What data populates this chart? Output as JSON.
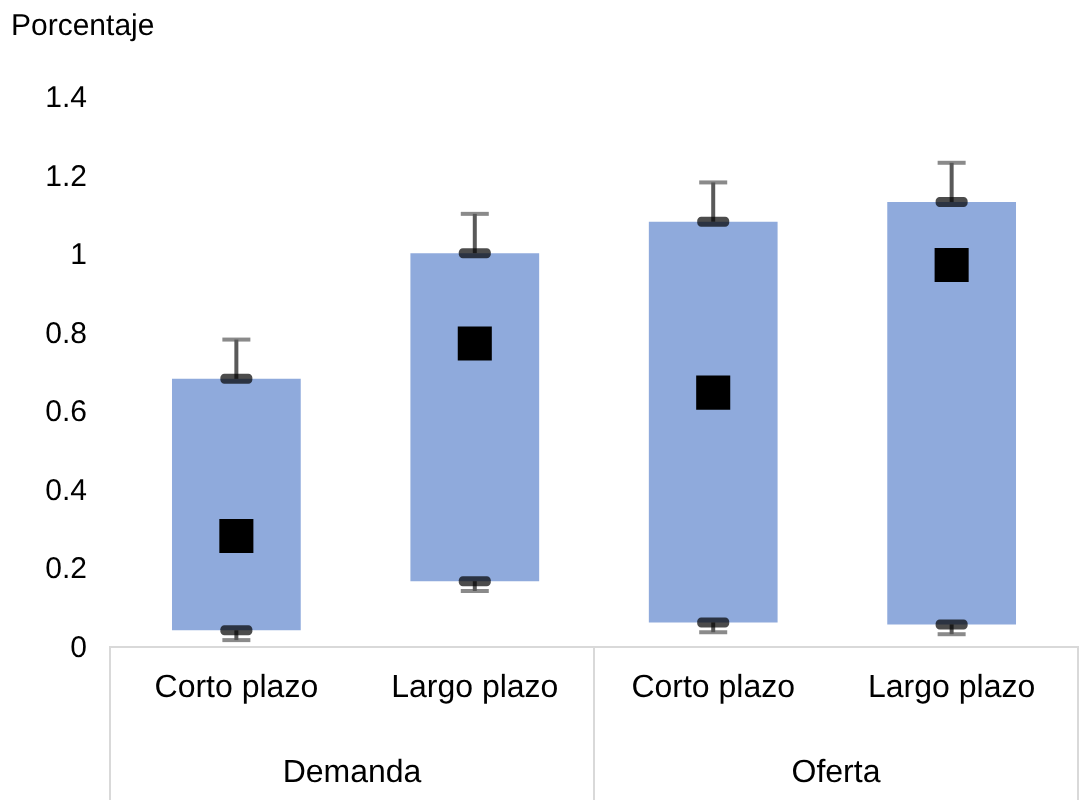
{
  "chart_data": {
    "type": "bar",
    "ylabel": "Porcentaje",
    "categories": [
      "Corto plazo",
      "Largo plazo",
      "Corto plazo",
      "Largo plazo"
    ],
    "annotations": [
      "Demanda",
      "Oferta"
    ],
    "ylim": [
      0,
      1.4
    ],
    "yticks": [
      0,
      0.2,
      0.4,
      0.6,
      0.8,
      1,
      1.2,
      1.4
    ],
    "grid": false,
    "series": [
      {
        "color": "#8faadc",
        "base": [
          0.04,
          0.165,
          0.06,
          0.055
        ],
        "values": [
          0.64,
          0.835,
          1.02,
          1.075
        ]
      },
      {
        "type": "scatter",
        "color": "#000000",
        "values": [
          0.68,
          1.0,
          1.08,
          1.13
        ],
        "errors": [
          [
            0.68,
            0.78
          ],
          [
            1.0,
            1.1
          ],
          [
            1.08,
            1.18
          ],
          [
            1.13,
            1.23
          ]
        ]
      },
      {
        "type": "scatter",
        "color": "#000000",
        "values": [
          0.04,
          0.165,
          0.06,
          0.055
        ],
        "errors": [
          [
            0.015,
            0.04
          ],
          [
            0.14,
            0.165
          ],
          [
            0.035,
            0.06
          ],
          [
            0.03,
            0.055
          ]
        ]
      },
      {
        "type": "scatter",
        "color": "#000000",
        "marker": "square",
        "values": [
          0.28,
          0.77,
          0.645,
          0.97
        ]
      }
    ]
  }
}
